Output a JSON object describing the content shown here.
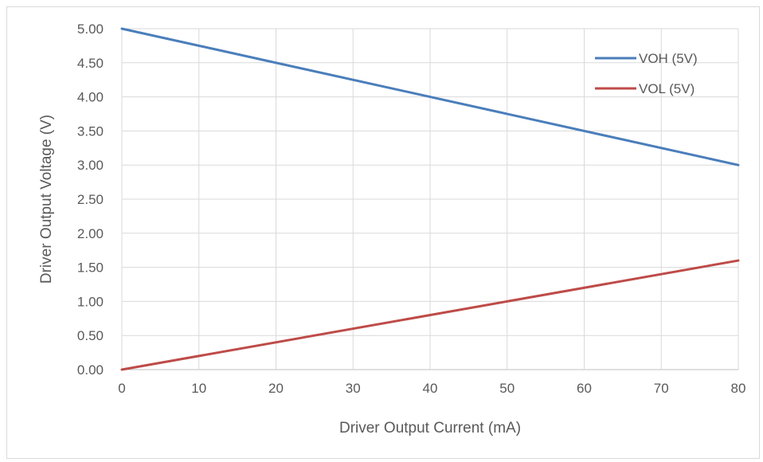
{
  "chart_data": {
    "type": "line",
    "title": "",
    "xlabel": "Driver Output Current (mA)",
    "ylabel": "Driver Output Voltage (V)",
    "xlim": [
      0,
      80
    ],
    "ylim": [
      0,
      5
    ],
    "x_ticks": [
      "0",
      "10",
      "20",
      "30",
      "40",
      "50",
      "60",
      "70",
      "80"
    ],
    "y_ticks": [
      "0.00",
      "0.50",
      "1.00",
      "1.50",
      "2.00",
      "2.50",
      "3.00",
      "3.50",
      "4.00",
      "4.50",
      "5.00"
    ],
    "grid": true,
    "legend_position": "top-right",
    "series": [
      {
        "name": "VOH (5V)",
        "color": "#4a7ebb",
        "x": [
          0,
          80
        ],
        "y": [
          5.0,
          3.0
        ]
      },
      {
        "name": "VOL (5V)",
        "color": "#be4b48",
        "x": [
          0,
          80
        ],
        "y": [
          0.0,
          1.6
        ]
      }
    ]
  }
}
